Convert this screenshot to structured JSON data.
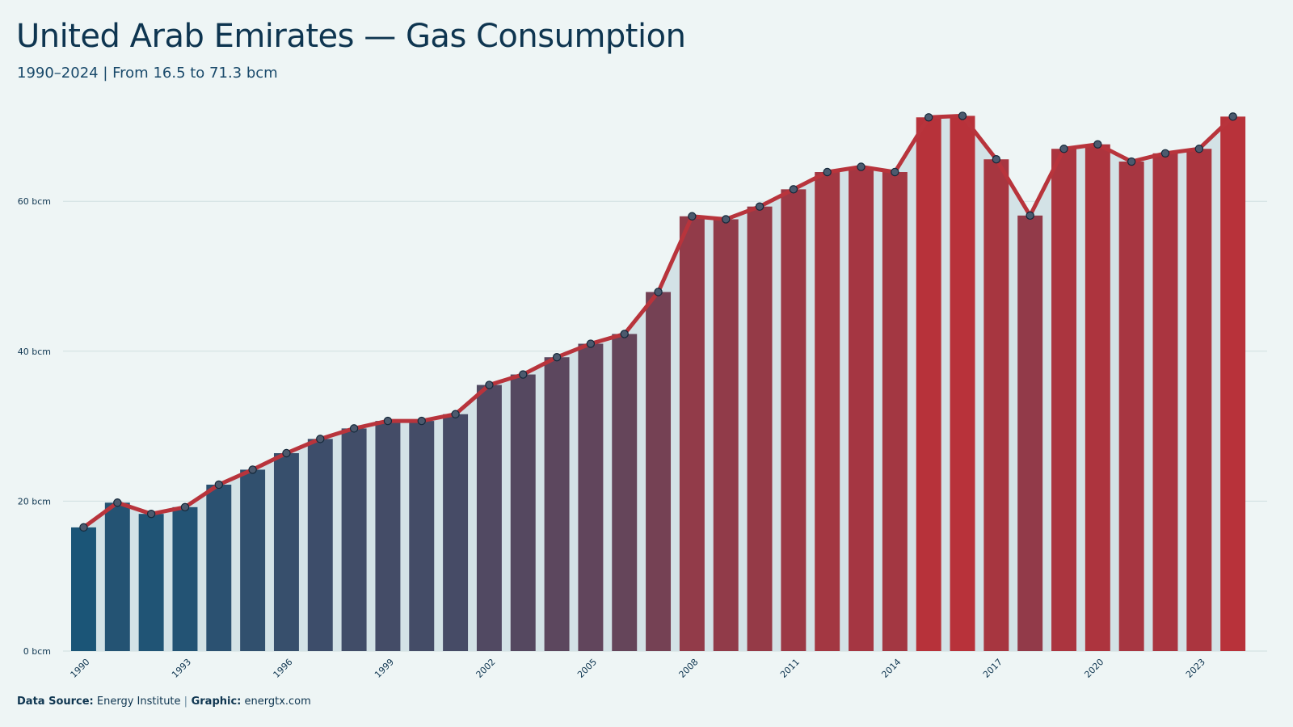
{
  "chart_data": {
    "type": "bar",
    "title": "United Arab Emirates — Gas Consumption",
    "subtitle": "1990–2024 | From 16.5 to 71.3 bcm",
    "categories": [
      "1990",
      "1991",
      "1992",
      "1993",
      "1994",
      "1995",
      "1996",
      "1997",
      "1998",
      "1999",
      "2000",
      "2001",
      "2002",
      "2003",
      "2004",
      "2005",
      "2006",
      "2007",
      "2008",
      "2009",
      "2010",
      "2011",
      "2012",
      "2013",
      "2014",
      "2015",
      "2016",
      "2017",
      "2018",
      "2019",
      "2020",
      "2021",
      "2022",
      "2023",
      "2024"
    ],
    "x_tick_labels": [
      "1990",
      "1993",
      "1996",
      "1999",
      "2002",
      "2005",
      "2008",
      "2011",
      "2014",
      "2017",
      "2020",
      "2023"
    ],
    "values": [
      16.5,
      19.8,
      18.3,
      19.2,
      22.2,
      24.2,
      26.4,
      28.3,
      29.7,
      30.7,
      30.7,
      31.6,
      35.5,
      36.9,
      39.2,
      41.0,
      42.3,
      47.9,
      58.0,
      57.6,
      59.3,
      61.6,
      63.9,
      64.6,
      63.9,
      71.2,
      71.4,
      65.6,
      58.1,
      67.0,
      67.6,
      65.3,
      66.4,
      67.0,
      71.3
    ],
    "y_ticks": [
      "0 bcm",
      "20 bcm",
      "40 bcm",
      "60 bcm"
    ],
    "y_tick_values": [
      0,
      20,
      40,
      60
    ],
    "ylim": [
      0,
      75
    ],
    "grid": true,
    "line_overlay": true,
    "colors": {
      "low": "#1b5577",
      "high": "#b8323a",
      "line": "#b8343c",
      "marker_fill": "#4c5a6e",
      "marker_stroke": "#14283a",
      "area": "#d3e2e6",
      "grid": "#cfdfe0",
      "axis_text": "#0e3550"
    }
  },
  "footer": {
    "source_label": "Data Source:",
    "source_value": " Energy Institute ",
    "sep": "|",
    "graphic_label": " Graphic:",
    "graphic_value": " energtx.com"
  }
}
